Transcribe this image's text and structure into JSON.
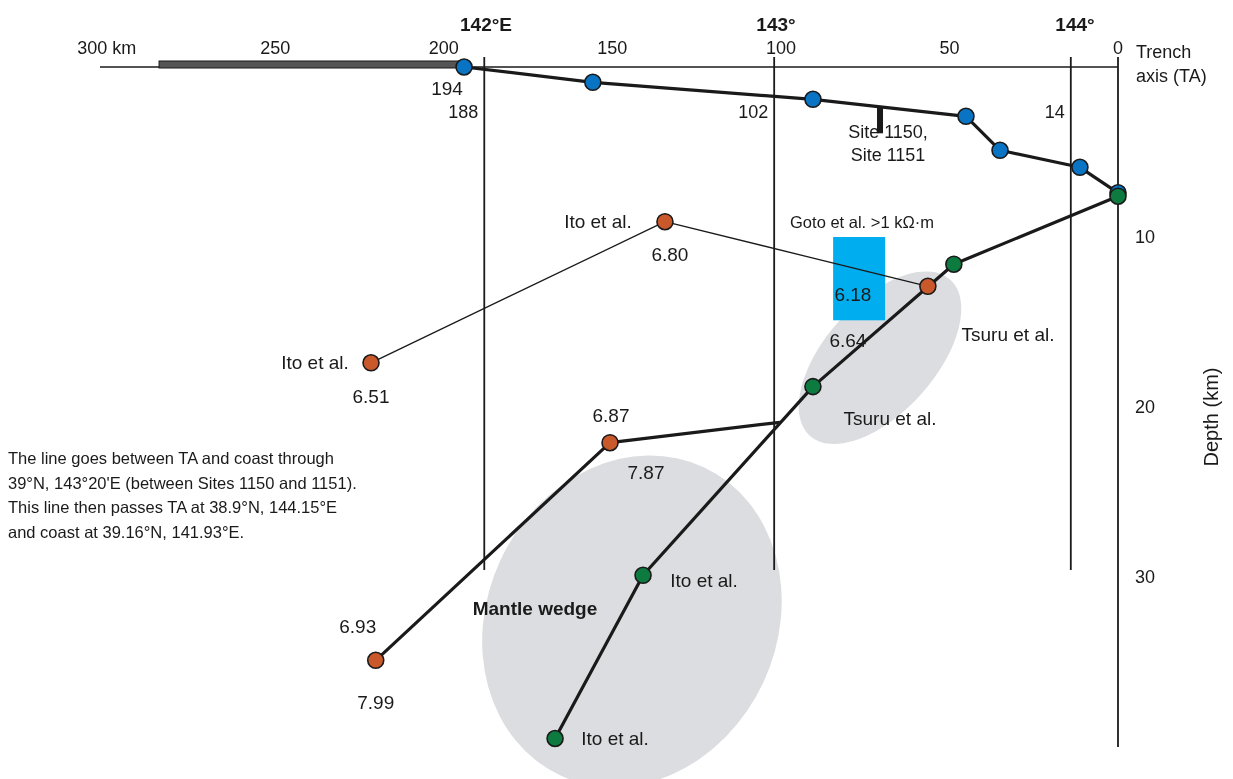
{
  "chart_data": {
    "type": "line",
    "ylabel": "Depth (km)",
    "xlim": [
      302,
      0
    ],
    "xticks": [
      {
        "value": 300,
        "label": "300 km"
      },
      250,
      200,
      150,
      100,
      50,
      0
    ],
    "ylim": [
      40,
      0
    ],
    "yticks": [
      10,
      20,
      30
    ],
    "marker": "circle",
    "grid": false,
    "series": [
      {
        "color": "#0a74c4",
        "x": [
          194,
          155.8,
          90.5,
          45.1,
          35,
          11.3,
          0
        ],
        "values": [
          0,
          0.9,
          1.9,
          2.9,
          4.9,
          5.9,
          7.4
        ]
      },
      {
        "color": "#0d7a3f",
        "x": [
          0,
          48.7,
          90.5,
          140.9,
          167
        ],
        "values": [
          7.6,
          11.6,
          18.8,
          29.9,
          39.5
        ]
      },
      {
        "color": "#c9582b",
        "x": [
          221.6,
          134.4,
          56.4
        ],
        "values": [
          17.4,
          9.1,
          12.9
        ]
      },
      {
        "marker": "none",
        "x": [
          220.2,
          150.7,
          100.3
        ],
        "values": [
          34.9,
          22.1,
          20.9
        ]
      },
      {
        "type": "scatter",
        "color": "#c9582b",
        "x": [
          220.2,
          150.7
        ],
        "values": [
          34.9,
          22.1
        ]
      },
      {
        "type": "bar",
        "color": "#00aeef",
        "x": [
          76.8
        ],
        "base": [
          10
        ],
        "values": [
          4.9
        ]
      }
    ],
    "ref_lines": [
      {
        "axis": "x",
        "value": 188,
        "label": "188"
      },
      {
        "axis": "x",
        "value": 102,
        "label": "102"
      },
      {
        "axis": "x",
        "value": 14,
        "label": "14"
      }
    ],
    "annotations": [
      "142°E",
      "143°",
      "144°",
      "Trench axis (TA)",
      "The line goes between TA and coast through 39°N, 143°20'E (between Sites 1150 and 1151). This line then passes TA at 38.9°N, 144.15°E and coast at 39.16°N, 141.93°E.",
      "Site 1150, Site 1151",
      "Goto et al. >1 kΩ·m",
      "Tsuru et al.",
      "Tsuru et al.",
      "Mantle wedge",
      {
        "text": "194",
        "x": 194,
        "y": 0
      },
      {
        "text": "Ito et al.",
        "x": 134.4,
        "y": 9.1
      },
      {
        "text": "6.80",
        "x": 134.4,
        "y": 9.1
      },
      {
        "text": "Ito et al.",
        "x": 221.6,
        "y": 17.4
      },
      {
        "text": "6.51",
        "x": 221.6,
        "y": 17.4
      },
      {
        "text": "6.18",
        "x": 56.4,
        "y": 12.9
      },
      {
        "text": "6.64",
        "x": 90.5,
        "y": 18.8
      },
      {
        "text": "6.87",
        "x": 150.7,
        "y": 22.1
      },
      {
        "text": "7.87",
        "x": 150.7,
        "y": 22.1
      },
      {
        "text": "Ito et al.",
        "x": 140.9,
        "y": 29.9
      },
      {
        "text": "6.93",
        "x": 220.2,
        "y": 34.9
      },
      {
        "text": "7.99",
        "x": 220.2,
        "y": 34.9
      },
      {
        "text": "Ito et al.",
        "x": 167,
        "y": 39.5
      }
    ]
  }
}
